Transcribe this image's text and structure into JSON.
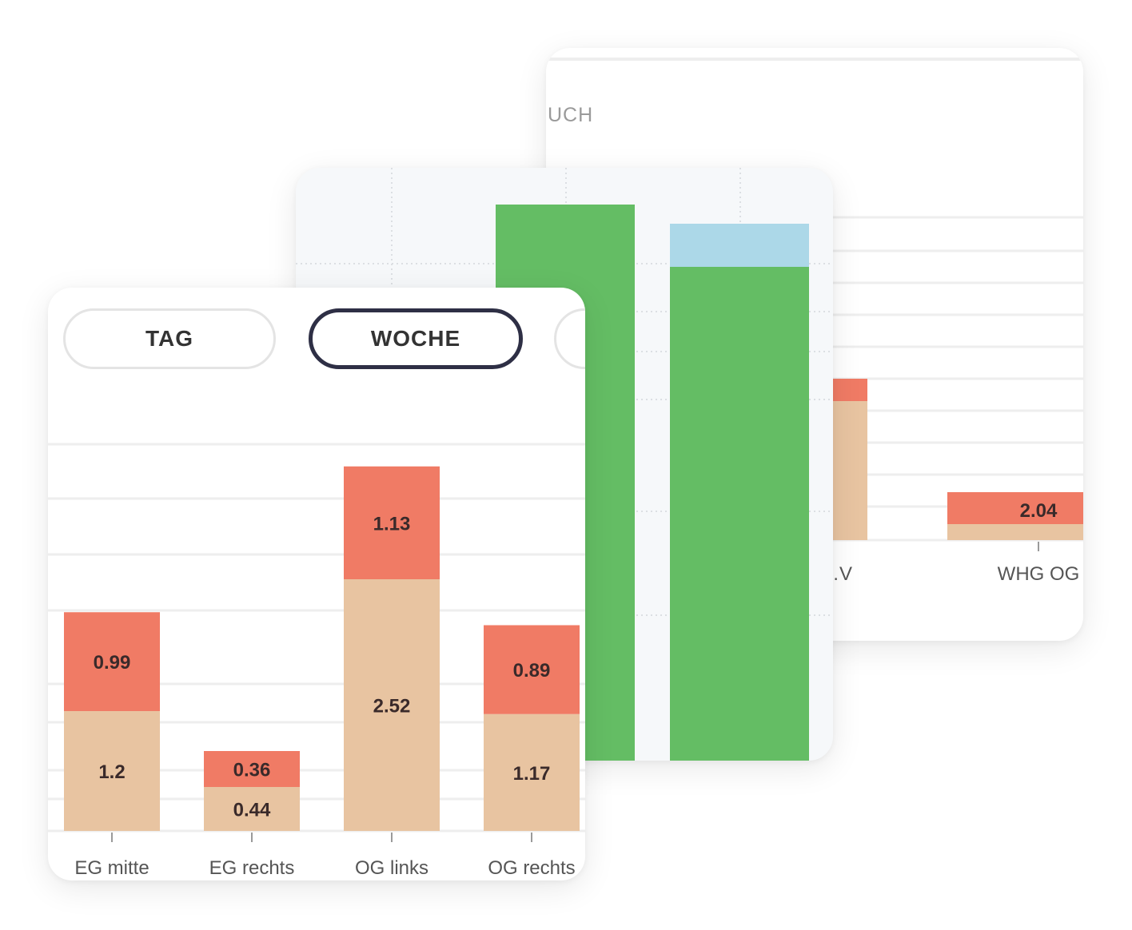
{
  "back_card": {
    "title_fragment": "UCH",
    "chart_data": {
      "type": "bar",
      "stacked": true,
      "categories": [
        "…V",
        "WHG OG"
      ],
      "series": [
        {
          "color": "#e8c4a1",
          "values": [
            null,
            null
          ]
        },
        {
          "color": "#f07b65",
          "values": [
            null,
            2.04
          ]
        }
      ],
      "value_labels": [
        "",
        "2.04"
      ],
      "grid": true
    }
  },
  "middle_card": {
    "chart_data": {
      "type": "bar",
      "stacked": true,
      "grid": true,
      "series": [
        {
          "color": "#64bd64",
          "values": [
            null,
            null
          ]
        },
        {
          "color": "#acd8e8",
          "values": [
            0,
            null
          ]
        }
      ]
    }
  },
  "front_card": {
    "period_buttons": [
      {
        "label": "TAG",
        "active": false
      },
      {
        "label": "WOCHE",
        "active": true
      },
      {
        "label": "",
        "active": false
      }
    ],
    "chart_data": {
      "type": "bar",
      "stacked": true,
      "categories": [
        "EG mitte",
        "EG rechts",
        "OG links",
        "OG rechts"
      ],
      "series": [
        {
          "color": "#e8c4a1",
          "values": [
            1.2,
            0.44,
            2.52,
            1.17
          ]
        },
        {
          "color": "#f07b65",
          "values": [
            0.99,
            0.36,
            1.13,
            0.89
          ]
        }
      ],
      "ylim": [
        0,
        4
      ],
      "grid": true
    }
  }
}
